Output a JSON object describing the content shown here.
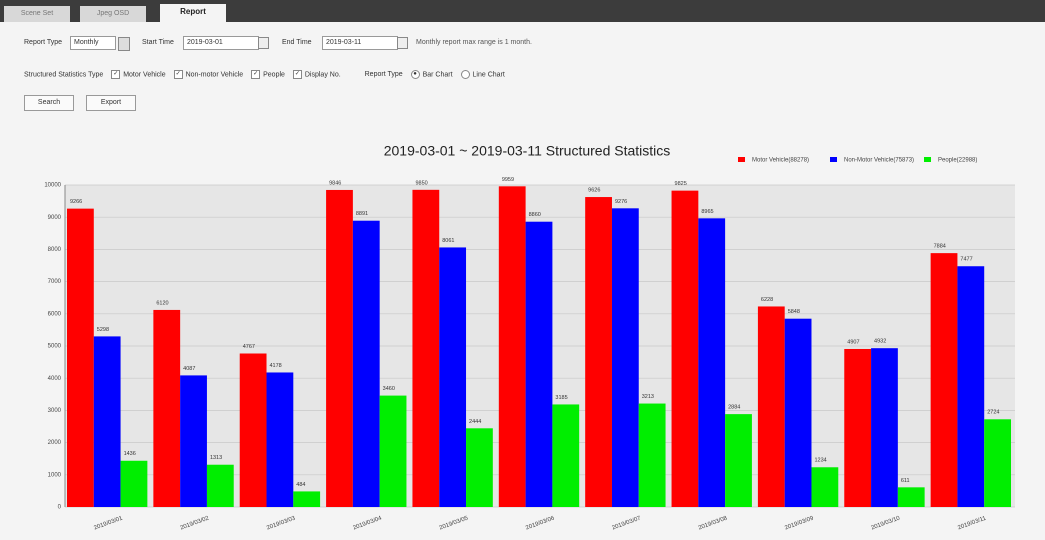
{
  "tabs": [
    "Scene Set",
    "Jpeg OSD",
    "Report"
  ],
  "form": {
    "report_type_label": "Report Type",
    "report_type_value": "Monthly",
    "start_time_label": "Start Time",
    "start_time_value": "2019-03-01",
    "end_time_label": "End Time",
    "end_time_value": "2019-03-11",
    "note": "Monthly report max range is 1 month.",
    "stat_type_label": "Structured Statistics Type",
    "stat_options": [
      "Motor Vehicle",
      "Non-motor Vehicle",
      "People",
      "Display No."
    ],
    "chart_type_label": "Report Type",
    "chart_options": [
      "Bar Chart",
      "Line Chart"
    ]
  },
  "buttons": [
    "Search",
    "Export"
  ],
  "chart_data": {
    "type": "bar",
    "title": "2019-03-01 ~ 2019-03-11 Structured Statistics",
    "categories": [
      "2019/03/01",
      "2019/03/02",
      "2019/03/03",
      "2019/03/04",
      "2019/03/05",
      "2019/03/06",
      "2019/03/07",
      "2019/03/08",
      "2019/03/09",
      "2019/03/10",
      "2019/03/11"
    ],
    "series": [
      {
        "name": "Motor Vehicle(88278)",
        "color": "#ff0000",
        "values": [
          9266,
          6120,
          4767,
          9846,
          9850,
          9959,
          9626,
          9825,
          6228,
          4907,
          7884
        ]
      },
      {
        "name": "Non-Motor Vehicle(75873)",
        "color": "#0000ff",
        "values": [
          5298,
          4087,
          4178,
          8891,
          8061,
          8860,
          9276,
          8965,
          5848,
          4932,
          7477
        ]
      },
      {
        "name": "People(22988)",
        "color": "#00ee00",
        "values": [
          1436,
          1313,
          484,
          3460,
          2444,
          3185,
          3213,
          2884,
          1234,
          611,
          2724
        ]
      }
    ],
    "ylim": [
      0,
      10000
    ],
    "yticks": [
      0,
      1000,
      2000,
      3000,
      4000,
      5000,
      6000,
      7000,
      8000,
      9000,
      10000
    ],
    "grid": true
  }
}
